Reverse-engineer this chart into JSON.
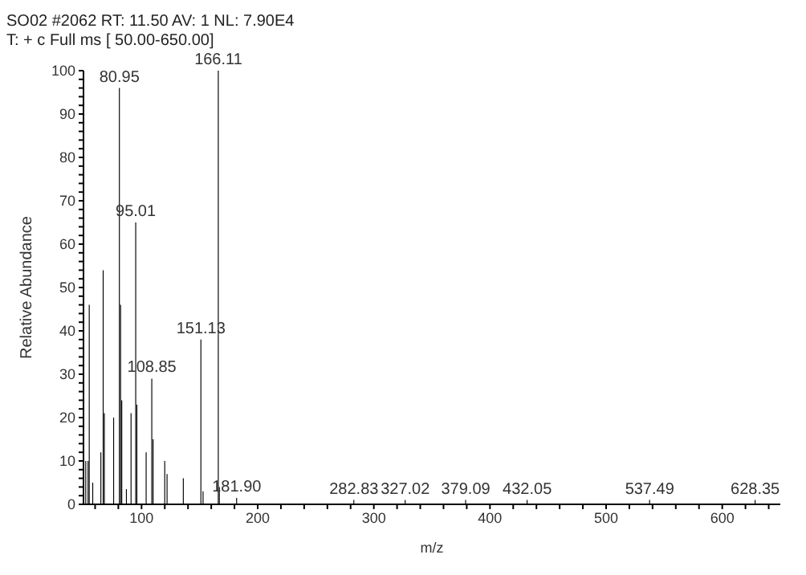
{
  "chart_data": {
    "type": "bar",
    "title": "SO02 #2062  RT: 11.50  AV: 1  NL: 7.90E4",
    "subtitle": "T: + c Full ms [ 50.00-650.00]",
    "xlabel": "m/z",
    "ylabel": "Relative Abundance",
    "x": [
      52,
      54,
      55,
      58,
      65,
      67,
      68,
      76,
      80.95,
      82,
      83,
      87,
      91,
      95.01,
      96,
      104,
      108.85,
      110,
      120,
      122,
      136,
      151.13,
      153,
      166.11,
      167,
      181.9,
      282.83,
      327.02,
      379.09,
      432.05,
      537.49,
      628.35
    ],
    "values": [
      10,
      10,
      46,
      5,
      12,
      54,
      21,
      20,
      96,
      46,
      24,
      3.5,
      21,
      65,
      23,
      12,
      29,
      15,
      10,
      7,
      6,
      38,
      3,
      100,
      4,
      1.5,
      1,
      1,
      1,
      1,
      1,
      1
    ],
    "annotations": [
      {
        "text": "80.95",
        "x": 80.95,
        "y": 96
      },
      {
        "text": "95.01",
        "x": 95.01,
        "y": 65
      },
      {
        "text": "108.85",
        "x": 108.85,
        "y": 29
      },
      {
        "text": "151.13",
        "x": 151.13,
        "y": 38
      },
      {
        "text": "166.11",
        "x": 166.11,
        "y": 100
      },
      {
        "text": "181.90",
        "x": 181.9,
        "y": 1.5
      },
      {
        "text": "282.83",
        "x": 282.83,
        "y": 1
      },
      {
        "text": "327.02",
        "x": 327.02,
        "y": 1
      },
      {
        "text": "379.09",
        "x": 379.09,
        "y": 1
      },
      {
        "text": "432.05",
        "x": 432.05,
        "y": 1
      },
      {
        "text": "537.49",
        "x": 537.49,
        "y": 1
      },
      {
        "text": "628.35",
        "x": 628.35,
        "y": 1
      }
    ],
    "color": "#000000",
    "xlim": [
      50,
      650
    ],
    "xticks": [
      {
        "value": 60,
        "label": null
      },
      {
        "value": 80,
        "label": null
      },
      100,
      {
        "value": 120,
        "label": null
      },
      {
        "value": 140,
        "label": null
      },
      {
        "value": 160,
        "label": null
      },
      {
        "value": 180,
        "label": null
      },
      200,
      {
        "value": 220,
        "label": null
      },
      {
        "value": 240,
        "label": null
      },
      {
        "value": 260,
        "label": null
      },
      {
        "value": 280,
        "label": null
      },
      300,
      {
        "value": 320,
        "label": null
      },
      {
        "value": 340,
        "label": null
      },
      {
        "value": 360,
        "label": null
      },
      {
        "value": 380,
        "label": null
      },
      400,
      {
        "value": 420,
        "label": null
      },
      {
        "value": 440,
        "label": null
      },
      {
        "value": 460,
        "label": null
      },
      {
        "value": 480,
        "label": null
      },
      500,
      {
        "value": 520,
        "label": null
      },
      {
        "value": 540,
        "label": null
      },
      {
        "value": 560,
        "label": null
      },
      {
        "value": 580,
        "label": null
      },
      600,
      {
        "value": 620,
        "label": null
      },
      {
        "value": 640,
        "label": null
      }
    ],
    "ylim": [
      0,
      100
    ],
    "yticks": [
      0,
      {
        "value": 2,
        "label": null
      },
      {
        "value": 4,
        "label": null
      },
      {
        "value": 6,
        "label": null
      },
      {
        "value": 8,
        "label": null
      },
      10,
      {
        "value": 12,
        "label": null
      },
      {
        "value": 14,
        "label": null
      },
      {
        "value": 16,
        "label": null
      },
      {
        "value": 18,
        "label": null
      },
      20,
      {
        "value": 22,
        "label": null
      },
      {
        "value": 24,
        "label": null
      },
      {
        "value": 26,
        "label": null
      },
      {
        "value": 28,
        "label": null
      },
      30,
      {
        "value": 32,
        "label": null
      },
      {
        "value": 34,
        "label": null
      },
      {
        "value": 36,
        "label": null
      },
      {
        "value": 38,
        "label": null
      },
      40,
      {
        "value": 42,
        "label": null
      },
      {
        "value": 44,
        "label": null
      },
      {
        "value": 46,
        "label": null
      },
      {
        "value": 48,
        "label": null
      },
      50,
      {
        "value": 52,
        "label": null
      },
      {
        "value": 54,
        "label": null
      },
      {
        "value": 56,
        "label": null
      },
      {
        "value": 58,
        "label": null
      },
      60,
      {
        "value": 62,
        "label": null
      },
      {
        "value": 64,
        "label": null
      },
      {
        "value": 66,
        "label": null
      },
      {
        "value": 68,
        "label": null
      },
      70,
      {
        "value": 72,
        "label": null
      },
      {
        "value": 74,
        "label": null
      },
      {
        "value": 76,
        "label": null
      },
      {
        "value": 78,
        "label": null
      },
      80,
      {
        "value": 82,
        "label": null
      },
      {
        "value": 84,
        "label": null
      },
      {
        "value": 86,
        "label": null
      },
      {
        "value": 88,
        "label": null
      },
      90,
      {
        "value": 92,
        "label": null
      },
      {
        "value": 94,
        "label": null
      },
      {
        "value": 96,
        "label": null
      },
      {
        "value": 98,
        "label": null
      },
      100
    ],
    "grid": false,
    "legend": false
  }
}
